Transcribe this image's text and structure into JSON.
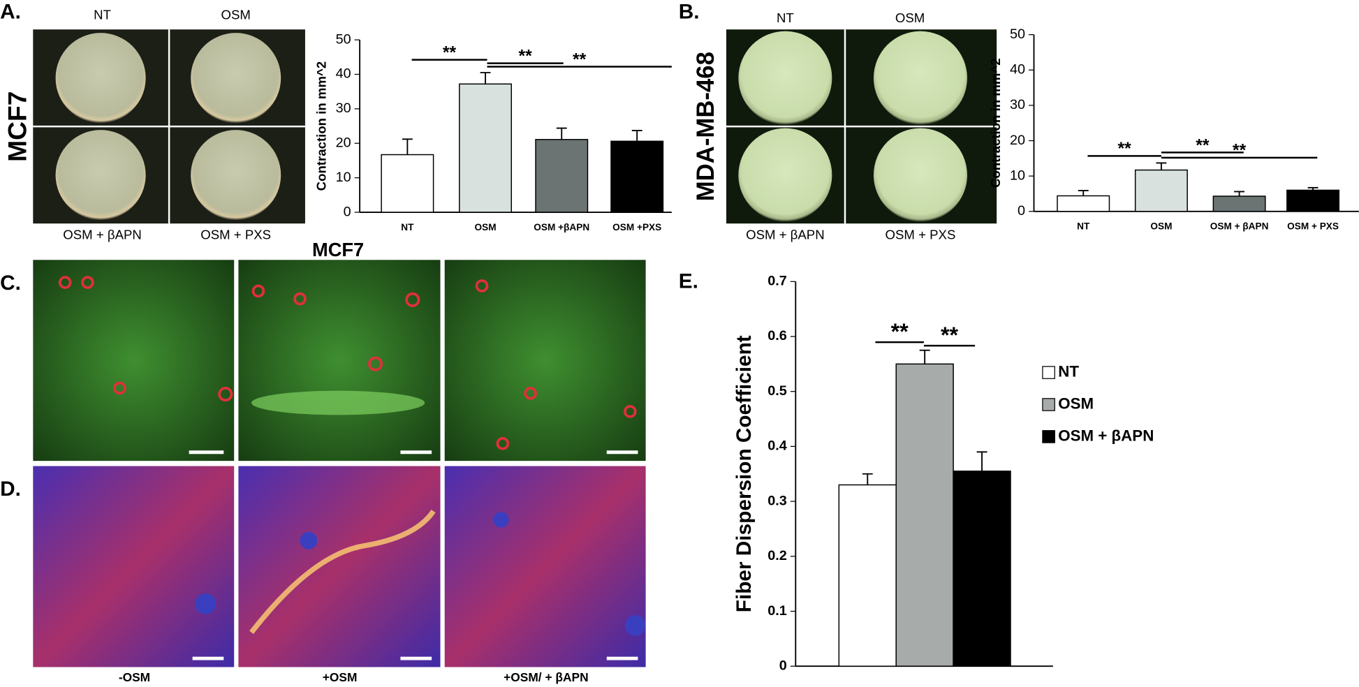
{
  "chart_data": [
    {
      "type": "bar",
      "y_label": "Contraction in mm^2",
      "categories": [
        "NT",
        "OSM",
        "OSM +βAPN",
        "OSM +PXS"
      ],
      "values": [
        16.7,
        37.2,
        21.1,
        20.6
      ],
      "errors": [
        4.5,
        3.3,
        3.3,
        3.1
      ],
      "colors": [
        "#ffffff",
        "#d9e1df",
        "#6b7373",
        "#000000"
      ],
      "ylim": [
        0,
        50
      ],
      "yticks": [
        0,
        10,
        20,
        30,
        40,
        50
      ],
      "annotations": [
        "**",
        "**",
        "**"
      ]
    },
    {
      "type": "bar",
      "y_label": "Contraction in mm^2",
      "categories": [
        "NT",
        "OSM",
        "OSM + βAPN",
        "OSM + PXS"
      ],
      "values": [
        4.4,
        11.7,
        4.3,
        6.0
      ],
      "errors": [
        1.5,
        2.0,
        1.3,
        0.7
      ],
      "colors": [
        "#ffffff",
        "#d9e1df",
        "#6b7373",
        "#000000"
      ],
      "ylim": [
        0,
        50
      ],
      "yticks": [
        0,
        10,
        20,
        30,
        40,
        50
      ],
      "annotations": [
        "**",
        "**",
        "**"
      ]
    },
    {
      "type": "grouped",
      "y_label": "Fiber Dispersion Coefficient",
      "series": [
        {
          "name": "NT",
          "color": "#ffffff",
          "values": [
            0.33
          ],
          "errors": [
            0.02
          ]
        },
        {
          "name": "OSM",
          "color": "#a7abaa",
          "values": [
            0.55
          ],
          "errors": [
            0.025
          ]
        },
        {
          "name": "OSM + βAPN",
          "color": "#000000",
          "values": [
            0.355
          ],
          "errors": [
            0.035
          ]
        }
      ],
      "ylim": [
        0,
        0.7
      ],
      "yticks": [
        0,
        0.1,
        0.2,
        0.3,
        0.4,
        0.5,
        0.6,
        0.7
      ],
      "annotations": [
        "**",
        "**"
      ]
    }
  ],
  "figure": {
    "panel_a": {
      "label": "A.",
      "cell_line": "MCF7",
      "top": [
        "NT",
        "OSM"
      ],
      "bottom": [
        "OSM + βAPN",
        "OSM + PXS"
      ]
    },
    "panel_b": {
      "label": "B.",
      "cell_line": "MDA-MB-468",
      "top": [
        "NT",
        "OSM"
      ],
      "bottom": [
        "OSM + βAPN",
        "OSM + PXS"
      ]
    },
    "panel_cd": {
      "title": "MCF7",
      "label_c": "C.",
      "label_d": "D.",
      "conditions": [
        "-OSM",
        "+OSM",
        "+OSM/ + βAPN"
      ]
    },
    "panel_e": {
      "label": "E."
    }
  }
}
